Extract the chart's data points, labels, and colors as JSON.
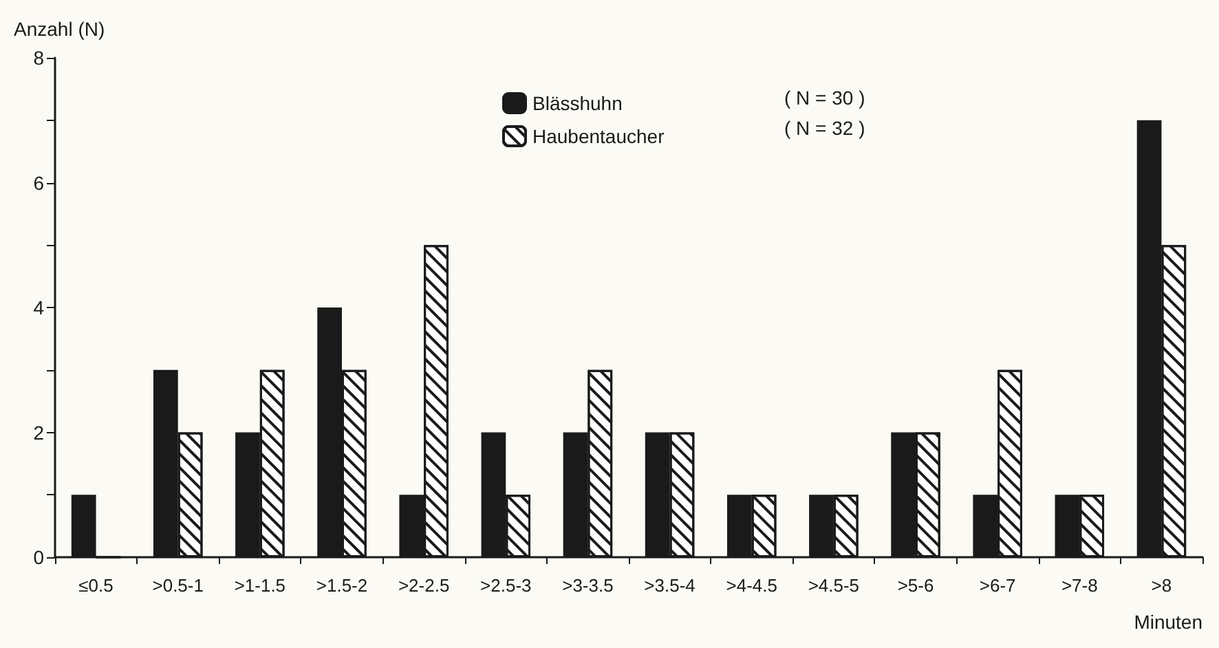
{
  "chart_data": {
    "type": "bar",
    "ylabel": "Anzahl (N)",
    "xlabel": "Minuten",
    "categories": [
      "≤0.5",
      ">0.5-1",
      ">1-1.5",
      ">1.5-2",
      ">2-2.5",
      ">2.5-3",
      ">3-3.5",
      ">3.5-4",
      ">4-4.5",
      ">4.5-5",
      ">5-6",
      ">6-7",
      ">7-8",
      ">8"
    ],
    "series": [
      {
        "name": "Blässhuhn",
        "color": "#1a1a1a",
        "values": [
          1,
          3,
          2,
          4,
          1,
          2,
          2,
          2,
          1,
          1,
          2,
          1,
          1,
          7
        ]
      },
      {
        "name": "Haubentaucher",
        "color": "#ffffff",
        "values": [
          0,
          2,
          3,
          3,
          5,
          1,
          3,
          2,
          1,
          1,
          2,
          3,
          1,
          5
        ]
      }
    ],
    "annotations": [
      "( N = 30 )",
      "( N = 32 )"
    ],
    "ylim": [
      0,
      8
    ],
    "yticks": [
      0,
      {
        "value": 1,
        "label": null
      },
      2,
      {
        "value": 3,
        "label": null
      },
      4,
      {
        "value": 5,
        "label": null
      },
      6,
      {
        "value": 7,
        "label": null
      },
      8
    ],
    "grid": false,
    "legend": "top"
  }
}
